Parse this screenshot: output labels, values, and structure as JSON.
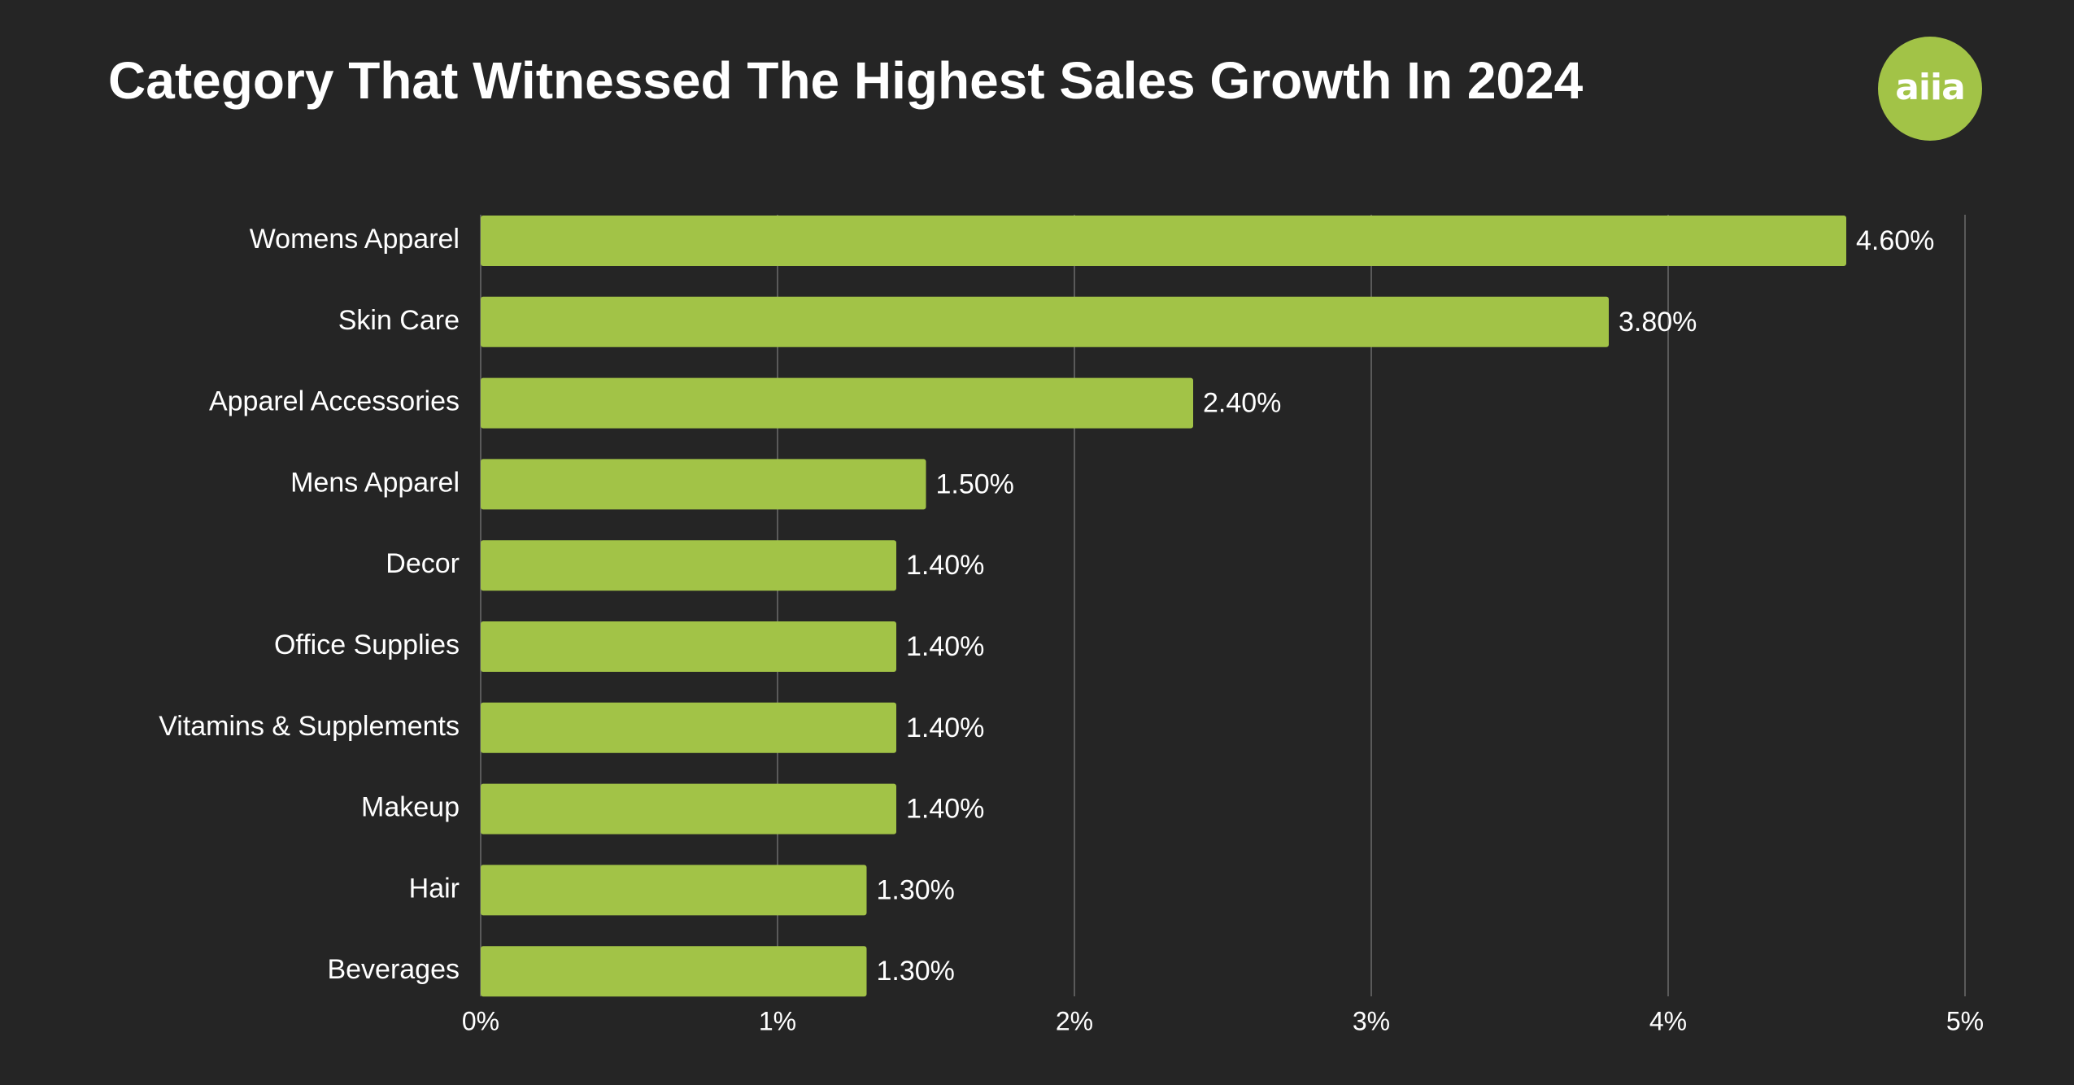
{
  "header": {
    "title": "Category That Witnessed The Highest Sales Growth In 2024",
    "logo_text": "aiia"
  },
  "colors": {
    "background": "#252525",
    "bar": "#a2c347",
    "grid": "#5a5a5a",
    "text": "#ffffff",
    "logo": "#a2c347"
  },
  "chart_data": {
    "type": "bar",
    "orientation": "horizontal",
    "title": "Category That Witnessed The Highest Sales Growth In 2024",
    "xlabel": "",
    "ylabel": "",
    "categories": [
      "Womens Apparel",
      "Skin Care",
      "Apparel Accessories",
      "Mens Apparel",
      "Decor",
      "Office Supplies",
      "Vitamins & Supplements",
      "Makeup",
      "Hair",
      "Beverages"
    ],
    "values": [
      4.6,
      3.8,
      2.4,
      1.5,
      1.4,
      1.4,
      1.4,
      1.4,
      1.3,
      1.3
    ],
    "value_labels": [
      "4.60%",
      "3.80%",
      "2.40%",
      "1.50%",
      "1.40%",
      "1.40%",
      "1.40%",
      "1.40%",
      "1.30%",
      "1.30%"
    ],
    "xlim": [
      0,
      5
    ],
    "xticks": [
      0,
      1,
      2,
      3,
      4,
      5
    ],
    "xtick_labels": [
      "0%",
      "1%",
      "2%",
      "3%",
      "4%",
      "5%"
    ],
    "grid": true,
    "legend": "none"
  }
}
